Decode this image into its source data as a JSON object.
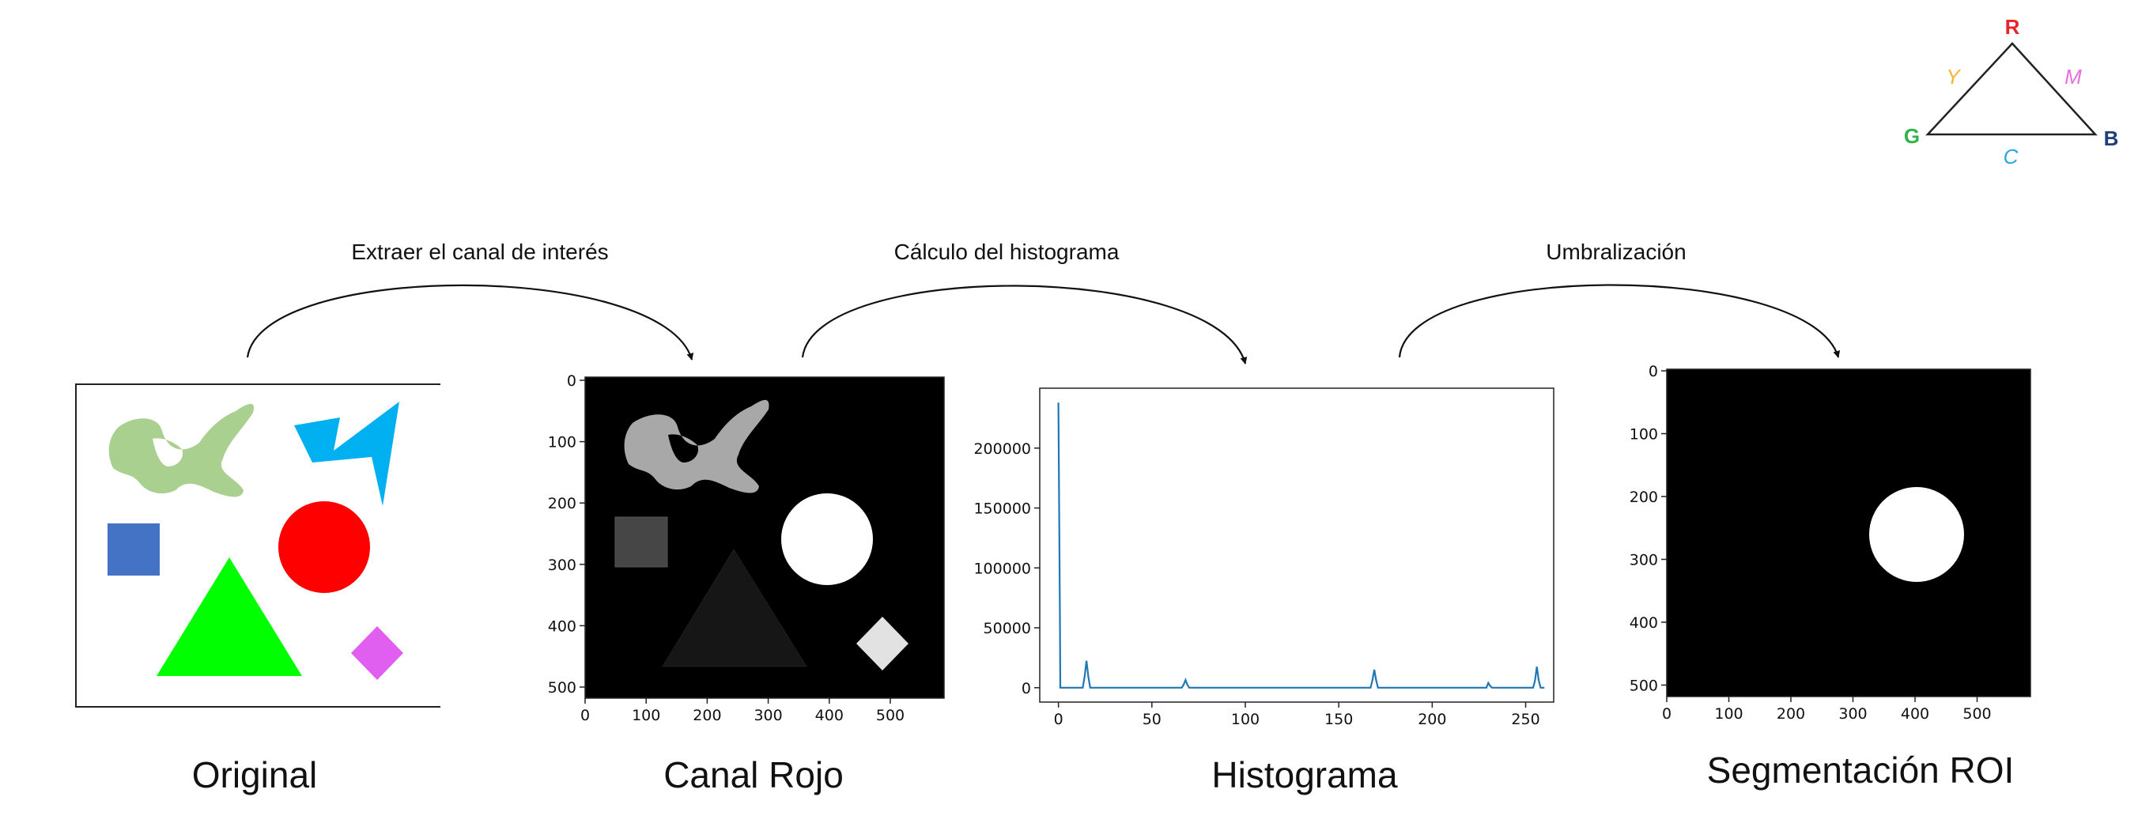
{
  "steps": [
    {
      "label": "Extraer el canal de interés"
    },
    {
      "label": "Cálculo del histograma"
    },
    {
      "label": "Umbralización"
    }
  ],
  "captions": {
    "original": "Original",
    "red_channel": "Canal Rojo",
    "histogram": "Histograma",
    "segmentation": "Segmentación ROI"
  },
  "rgb_triangle": {
    "vertices": {
      "r": "R",
      "g": "G",
      "b": "B"
    },
    "edges": {
      "y": "Y",
      "m": "M",
      "c": "C"
    },
    "colors": {
      "r": "#e8242b",
      "g": "#2fb34a",
      "b": "#1d3f7a",
      "y": "#f2b632",
      "m": "#e86ee0",
      "c": "#2aa7dd"
    }
  },
  "shape_colors": {
    "blob": "#a9d08e",
    "bolt": "#00b0f0",
    "square": "#4472c4",
    "circle": "#ff0000",
    "triangle": "#00ff00",
    "diamond": "#e05ef0"
  },
  "image_axes": {
    "x_ticks": [
      "0",
      "100",
      "200",
      "300",
      "400",
      "500"
    ],
    "y_ticks": [
      "0",
      "100",
      "200",
      "300",
      "400",
      "500"
    ]
  },
  "chart_data": {
    "type": "line",
    "xlim": [
      -10,
      265
    ],
    "ylim": [
      -12000,
      250000
    ],
    "x_ticks": [
      "0",
      "50",
      "100",
      "150",
      "200",
      "250"
    ],
    "y_ticks": [
      "0",
      "50000",
      "100000",
      "150000",
      "200000"
    ],
    "series": [
      {
        "color": "#1f77b4",
        "x": [
          0,
          0.8,
          1,
          2,
          13,
          14,
          15,
          16,
          17,
          66,
          67,
          68,
          69,
          70,
          167,
          168,
          169,
          170,
          171,
          229,
          230,
          231,
          232,
          254,
          255,
          256,
          257,
          258,
          260
        ],
        "y": [
          238000,
          60000,
          0,
          0,
          0,
          9000,
          22500,
          9000,
          0,
          0,
          2500,
          6500,
          2500,
          0,
          0,
          6000,
          15000,
          6000,
          0,
          0,
          4000,
          1500,
          0,
          0,
          6000,
          17500,
          6000,
          0,
          0
        ]
      }
    ]
  }
}
